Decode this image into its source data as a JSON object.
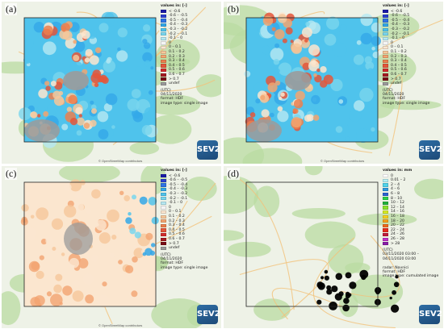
{
  "colors": {
    "land": "#eef2e7",
    "forest": "#b9dba1",
    "road_major": "#f2c27a",
    "road_minor": "#ffffff",
    "logo": "#2e6da4"
  },
  "legend_classes": {
    "index": [
      {
        "label": "< -0.6",
        "color": "#1a1aa8"
      },
      {
        "label": "-0.6 – -0.5",
        "color": "#2b3fd0"
      },
      {
        "label": "-0.5 – -0.4",
        "color": "#2e73e4"
      },
      {
        "label": "-0.4 – -0.3",
        "color": "#33a7e8"
      },
      {
        "label": "-0.3 – -0.2",
        "color": "#4fc3ec"
      },
      {
        "label": "-0.2 – -0.1",
        "color": "#79d6ee"
      },
      {
        "label": "-0.1 – 0",
        "color": "#b6e8f2"
      },
      {
        "label": "0",
        "color": "#f4f4f4"
      },
      {
        "label": "0 – 0.1",
        "color": "#fbe6cf"
      },
      {
        "label": "0.1 – 0.2",
        "color": "#f6c79a"
      },
      {
        "label": "0.2 – 0.3",
        "color": "#f2a470"
      },
      {
        "label": "0.3 – 0.4",
        "color": "#ec7f4d"
      },
      {
        "label": "0.4 – 0.5",
        "color": "#e4563a"
      },
      {
        "label": "0.5 – 0.6",
        "color": "#d22b2b"
      },
      {
        "label": "0.6 – 0.7",
        "color": "#a51a22"
      },
      {
        "label": "> 0.7",
        "color": "#7a0d18"
      },
      {
        "label": "undef",
        "color": "#9b9b9b"
      }
    ],
    "precip": [
      {
        "label": "0",
        "color": "#ffffff"
      },
      {
        "label": "0.01 – 2",
        "color": "#b6f0f6"
      },
      {
        "label": "2 – 4",
        "color": "#4fd3ea"
      },
      {
        "label": "4 – 6",
        "color": "#2e9ae0"
      },
      {
        "label": "6 – 8",
        "color": "#2a62d0"
      },
      {
        "label": "8 – 10",
        "color": "#2bd14a"
      },
      {
        "label": "10 – 12",
        "color": "#20b13a"
      },
      {
        "label": "12 – 14",
        "color": "#88e02a"
      },
      {
        "label": "14 – 16",
        "color": "#d6ec24"
      },
      {
        "label": "16 – 18",
        "color": "#f7d21e"
      },
      {
        "label": "18 – 20",
        "color": "#f4a21c"
      },
      {
        "label": "20 – 22",
        "color": "#ef6a1c"
      },
      {
        "label": "22 – 24",
        "color": "#e82c1c"
      },
      {
        "label": "24 – 26",
        "color": "#c01a3a"
      },
      {
        "label": "26 – 28",
        "color": "#c230c8"
      },
      {
        "label": "> 28",
        "color": "#8a1ea8"
      }
    ]
  },
  "panels": [
    {
      "letter": "(a)",
      "legend_kind": "index",
      "legend_title": "values in: [-]",
      "meta": [
        "(UTC)",
        "04/11/2020",
        "format: HDF",
        "image type: single image"
      ],
      "fill": "blue",
      "credit": "© OpenStreetMap contributors",
      "logo": "SEV2"
    },
    {
      "letter": "(b)",
      "legend_kind": "index",
      "legend_title": "values in: [-]",
      "meta": [
        "(UTC)",
        "04/11/2020",
        "format: HDF",
        "image type: single image"
      ],
      "fill": "blue",
      "credit": "© OpenStreetMap contributors",
      "logo": "SEV2"
    },
    {
      "letter": "(c)",
      "legend_kind": "index",
      "legend_title": "values in: [-]",
      "meta": [
        "(UTC)",
        "04/11/2020",
        "format: HDF",
        "image type: single image"
      ],
      "fill": "orange",
      "credit": "© OpenStreetMap contributors",
      "logo": "SEV2"
    },
    {
      "letter": "(d)",
      "legend_kind": "precip",
      "legend_title": "values in: mm",
      "meta": [
        "(UTC)",
        "03/11/2020 03:00 –",
        "04/11/2020 03:00",
        "",
        "radar: Navnici",
        "format: HDF",
        "image type: cumulated image"
      ],
      "fill": "none",
      "credit": "",
      "logo": "SEV2"
    }
  ]
}
